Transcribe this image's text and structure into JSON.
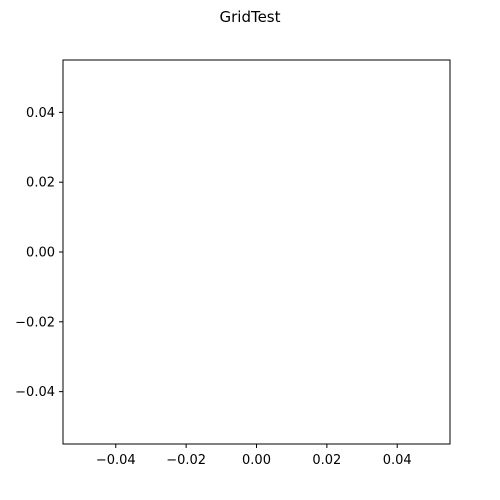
{
  "chart_data": {
    "type": "scatter",
    "title": "GridTest",
    "xlabel": "",
    "ylabel": "",
    "xlim": [
      -0.055,
      0.055
    ],
    "ylim": [
      -0.055,
      0.055
    ],
    "grid": false,
    "series": [],
    "x_ticks": [
      {
        "value": -0.04,
        "label": "−0.04"
      },
      {
        "value": -0.02,
        "label": "−0.02"
      },
      {
        "value": 0.0,
        "label": "0.00"
      },
      {
        "value": 0.02,
        "label": "0.02"
      },
      {
        "value": 0.04,
        "label": "0.04"
      }
    ],
    "y_ticks": [
      {
        "value": 0.04,
        "label": "0.04"
      },
      {
        "value": 0.02,
        "label": "0.02"
      },
      {
        "value": 0.0,
        "label": "0.00"
      },
      {
        "value": -0.02,
        "label": "−0.02"
      },
      {
        "value": -0.04,
        "label": "−0.04"
      }
    ]
  }
}
